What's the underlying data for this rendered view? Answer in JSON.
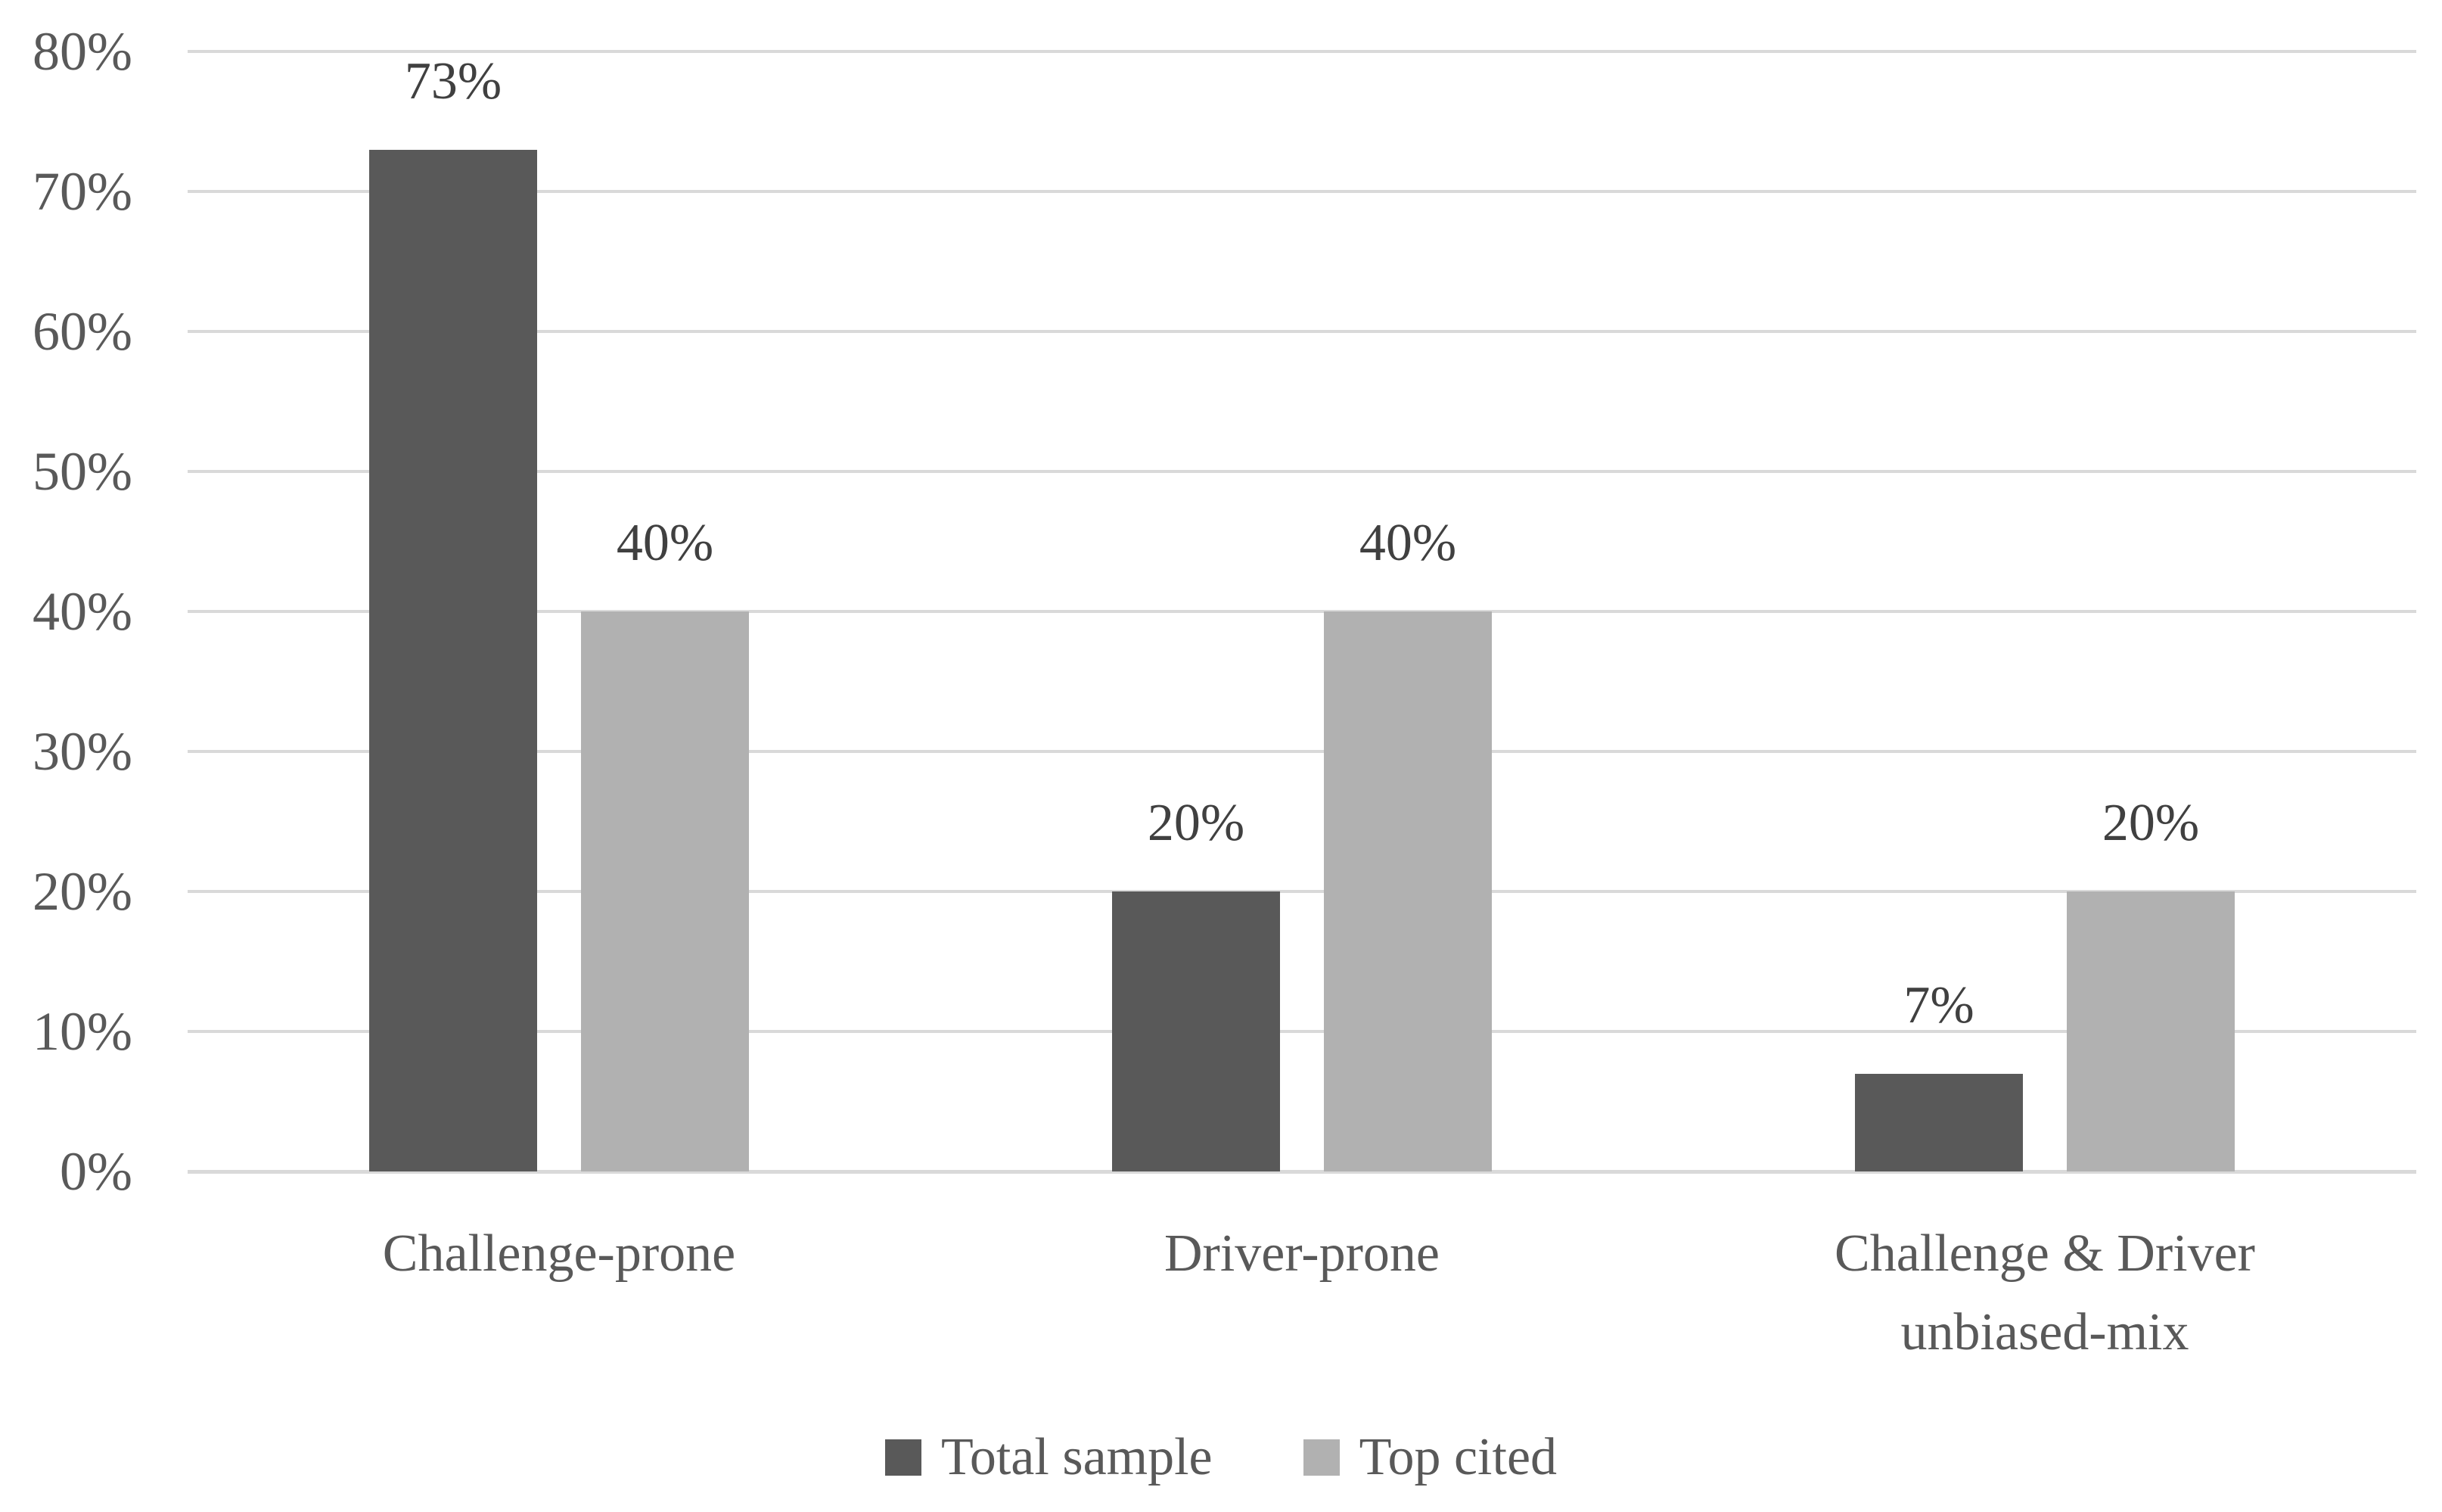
{
  "chart_data": {
    "type": "bar",
    "title": "",
    "xlabel": "",
    "ylabel": "",
    "categories": [
      "Challenge-prone",
      "Driver-prone",
      "Challenge & Driver\nunbiased-mix"
    ],
    "series": [
      {
        "name": "Total sample",
        "values": [
          73,
          20,
          7
        ],
        "labels": [
          "73%",
          "20%",
          "7%"
        ],
        "color": "#595959"
      },
      {
        "name": "Top cited",
        "values": [
          40,
          40,
          20
        ],
        "labels": [
          "40%",
          "40%",
          "20%"
        ],
        "color": "#b1b1b1"
      }
    ],
    "y_axis": {
      "min": 0,
      "max": 80,
      "step": 10,
      "tick_labels": [
        "0%",
        "10%",
        "20%",
        "30%",
        "40%",
        "50%",
        "60%",
        "70%",
        "80%"
      ]
    },
    "grid": true,
    "legend_position": "bottom",
    "colors": {
      "gridline": "#d9d9d9",
      "axis_line": "#d9d9d9",
      "tick_text": "#595959",
      "category_text": "#595959",
      "data_label_text": "#404040",
      "legend_text": "#595959",
      "background": "#ffffff"
    }
  }
}
